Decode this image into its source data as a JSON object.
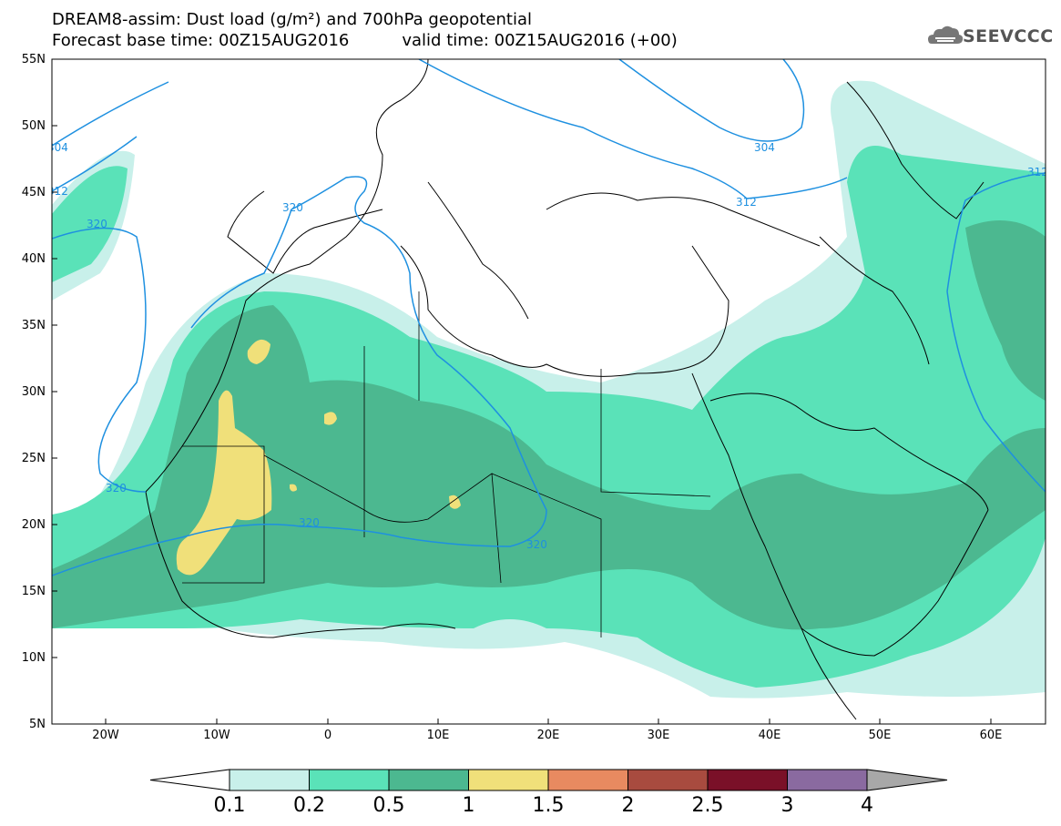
{
  "header": {
    "title_line1": "DREAM8-assim: Dust load (g/m²) and 700hPa geopotential",
    "base_label": "Forecast base time: 00Z15AUG2016",
    "valid_label": "valid time: 00Z15AUG2016 (+00)",
    "logo_text": "SEEVCCC",
    "logo_icon": "cloud-logo-icon"
  },
  "axes": {
    "lat_labels": [
      "55N",
      "50N",
      "45N",
      "40N",
      "35N",
      "30N",
      "25N",
      "20N",
      "15N",
      "10N",
      "5N"
    ],
    "lon_labels": [
      "20W",
      "10W",
      "0",
      "10E",
      "20E",
      "30E",
      "40E",
      "50E",
      "60E"
    ]
  },
  "contours": {
    "labels": [
      "304",
      "312",
      "320",
      "320",
      "304",
      "312",
      "320",
      "320",
      "312"
    ],
    "color": "#1e90e0"
  },
  "legend": {
    "levels": [
      "0.1",
      "0.2",
      "0.5",
      "1",
      "1.5",
      "2",
      "2.5",
      "3",
      "4"
    ],
    "colors": [
      "#c8f0ea",
      "#5ae2b8",
      "#4cb890",
      "#f0e07a",
      "#e88a60",
      "#a84b3f",
      "#7a1028",
      "#8a6aa0"
    ],
    "under_color": "#ffffff",
    "over_color": "#a8a8a8"
  },
  "map": {
    "land_outline_color": "#000000",
    "background": "#ffffff"
  }
}
